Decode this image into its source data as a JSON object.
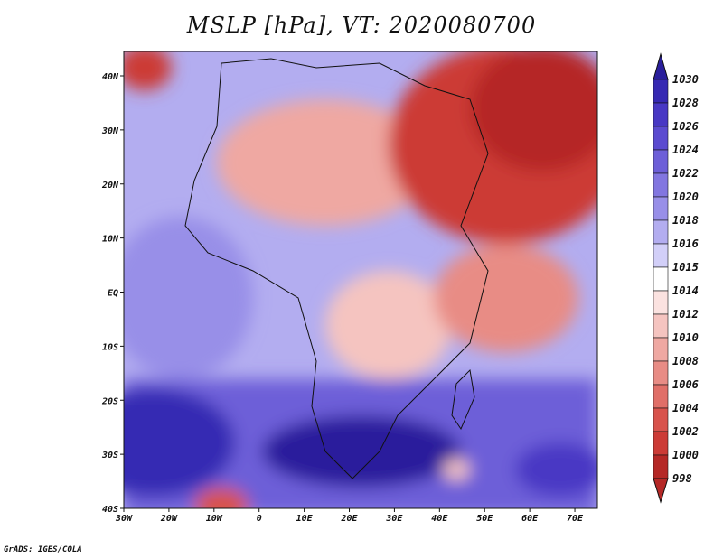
{
  "title": "MSLP [hPa], VT: 2020080700",
  "credit": "GrADS: IGES/COLA",
  "map": {
    "x_ticks": [
      "30W",
      "20W",
      "10W",
      "0",
      "10E",
      "20E",
      "30E",
      "40E",
      "50E",
      "60E",
      "70E"
    ],
    "y_ticks": [
      "40N",
      "30N",
      "20N",
      "10N",
      "EQ",
      "10S",
      "20S",
      "30S",
      "40S"
    ]
  },
  "colorbar": {
    "levels": [
      "1030",
      "1028",
      "1026",
      "1024",
      "1022",
      "1020",
      "1018",
      "1016",
      "1015",
      "1014",
      "1012",
      "1010",
      "1008",
      "1006",
      "1004",
      "1002",
      "1000",
      "998"
    ],
    "colors": [
      "#2a1f9c",
      "#3629b3",
      "#4838c4",
      "#5b4bd0",
      "#6d5fd8",
      "#8276e0",
      "#988fe8",
      "#b3adf0",
      "#d2cff8",
      "#ffffff",
      "#fbe2e0",
      "#f5c4c0",
      "#efa8a2",
      "#e88c85",
      "#e06f68",
      "#d8534c",
      "#cc3b36",
      "#b52826"
    ]
  }
}
